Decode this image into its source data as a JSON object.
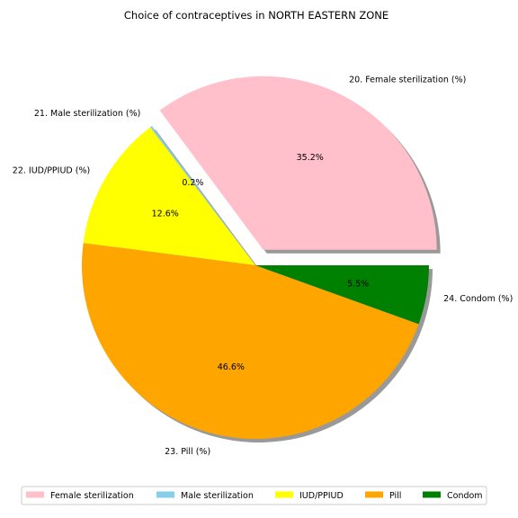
{
  "chart_data": {
    "type": "pie",
    "title": "Choice of contraceptives in NORTH EASTERN ZONE",
    "shadow": true,
    "start_angle_deg": 0,
    "direction": "counterclockwise",
    "slices": [
      {
        "key": "female",
        "label": "20. Female sterilization (%)",
        "pct_text": "35.2%",
        "value": 35.2,
        "color": "#ffc0cb",
        "explode": 0.1,
        "legend": "Female sterilization"
      },
      {
        "key": "male",
        "label": "21. Male sterilization (%)",
        "pct_text": "0.2%",
        "value": 0.2,
        "color": "#87ceeb",
        "explode": 0,
        "legend": "Male sterilization"
      },
      {
        "key": "iud",
        "label": "22. IUD/PPIUD (%)",
        "pct_text": "12.6%",
        "value": 12.6,
        "color": "#ffff00",
        "explode": 0,
        "legend": "IUD/PPIUD"
      },
      {
        "key": "pill",
        "label": "23. Pill (%)",
        "pct_text": "46.6%",
        "value": 46.6,
        "color": "#ffa500",
        "explode": 0,
        "legend": "Pill"
      },
      {
        "key": "condom",
        "label": "24. Condom (%)",
        "pct_text": "5.5%",
        "value": 5.5,
        "color": "#008000",
        "explode": 0,
        "legend": "Condom"
      }
    ],
    "legend_position": "bottom"
  }
}
